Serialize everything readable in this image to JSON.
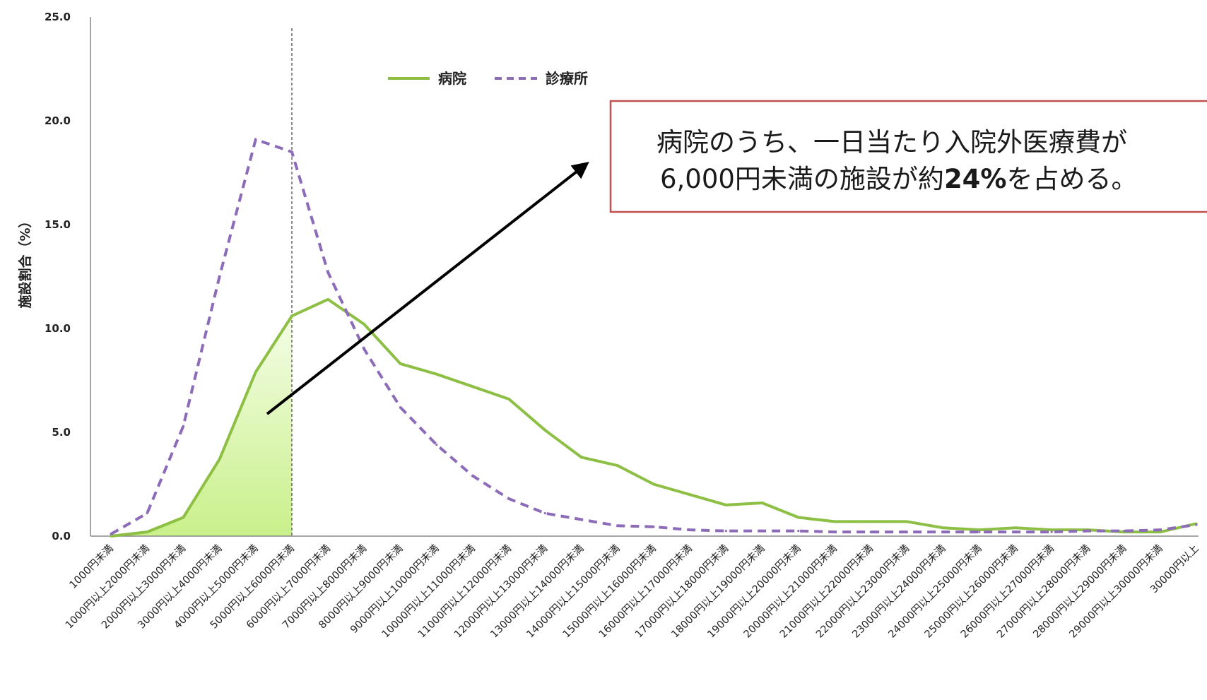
{
  "chart_data": {
    "type": "line",
    "ylabel": "施設割合（%）",
    "ylim": [
      0,
      25
    ],
    "yticks": [
      "0.0",
      "5.0",
      "10.0",
      "15.0",
      "20.0",
      "25.0"
    ],
    "categories": [
      "1000円未満",
      "1000円以上2000円未満",
      "2000円以上3000円未満",
      "3000円以上4000円未満",
      "4000円以上5000円未満",
      "5000円以上6000円未満",
      "6000円以上7000円未満",
      "7000円以上8000円未満",
      "8000円以上9000円未満",
      "9000円以上10000円未満",
      "10000円以上11000円未満",
      "11000円以上12000円未満",
      "12000円以上13000円未満",
      "13000円以上14000円未満",
      "14000円以上15000円未満",
      "15000円以上16000円未満",
      "16000円以上17000円未満",
      "17000円以上18000円未満",
      "18000円以上19000円未満",
      "19000円以上20000円未満",
      "20000円以上21000円未満",
      "21000円以上22000円未満",
      "22000円以上23000円未満",
      "23000円以上24000円未満",
      "24000円以上25000円未満",
      "25000円以上26000円未満",
      "26000円以上27000円未満",
      "27000円以上28000円未満",
      "28000円以上29000円未満",
      "29000円以上30000円未満",
      "30000円以上"
    ],
    "series": [
      {
        "name": "病院",
        "style": "solid",
        "color": "#8cbf44",
        "values": [
          0.0,
          0.2,
          0.9,
          3.7,
          7.9,
          10.6,
          11.4,
          10.2,
          8.3,
          7.8,
          7.2,
          6.6,
          5.1,
          3.8,
          3.4,
          2.5,
          2.0,
          1.5,
          1.6,
          0.9,
          0.7,
          0.7,
          0.7,
          0.4,
          0.3,
          0.4,
          0.3,
          0.3,
          0.2,
          0.2,
          0.6
        ]
      },
      {
        "name": "診療所",
        "style": "dashed",
        "color": "#8c6bb8",
        "values": [
          0.1,
          1.1,
          5.3,
          12.5,
          19.1,
          18.5,
          12.7,
          9.0,
          6.2,
          4.4,
          2.9,
          1.8,
          1.1,
          0.8,
          0.5,
          0.45,
          0.3,
          0.25,
          0.25,
          0.25,
          0.2,
          0.2,
          0.2,
          0.2,
          0.2,
          0.2,
          0.2,
          0.25,
          0.25,
          0.3,
          0.55
        ]
      }
    ],
    "shaded_region": {
      "series": "病院",
      "from_index": 0,
      "to_index": 5,
      "color": "#d5f5a0"
    },
    "divider_after_index": 5,
    "legend": {
      "placement": "top-center"
    },
    "grid": false
  },
  "annotation": {
    "line1": "病院のうち、一日当たり入院外医療費が",
    "line2_prefix": "6,000円未満の施設が約",
    "line2_bold": "24%",
    "line2_suffix": "を占める。",
    "border_color": "#c0504d"
  }
}
